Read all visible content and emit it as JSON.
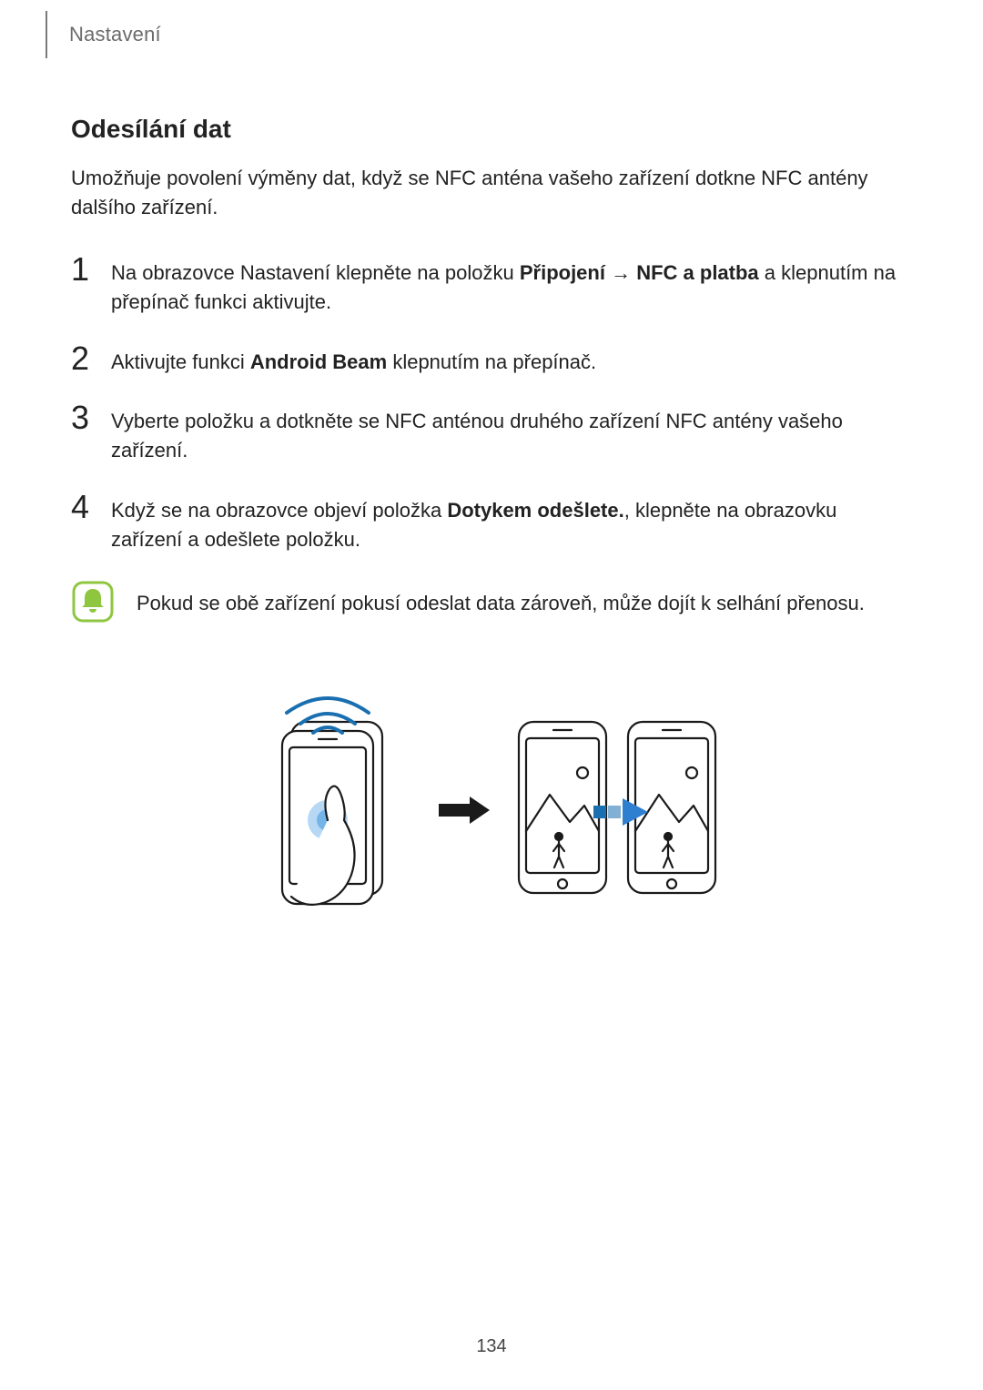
{
  "colors": {
    "page_bg": "#ffffff",
    "text": "#222222",
    "header_text": "#6b6b6b",
    "header_rule": "#7a7a7a",
    "note_icon_stroke": "#8fc640",
    "note_icon_fill": "#8fc640",
    "note_icon_inner": "#ffffff",
    "illus_stroke": "#1a1a1a",
    "illus_wave": "#1a6fb0",
    "illus_touch": "#5fa8e6",
    "illus_arrow_fill": "#1a1a1a",
    "illus_transfer_arrow": "#2f7fd1",
    "illus_bar_accent": "#1a6fb0"
  },
  "fonts": {
    "tab_size_pt": 16,
    "title_size_pt": 21,
    "body_size_pt": 16,
    "step_num_size_pt": 27,
    "page_num_size_pt": 15
  },
  "header": {
    "tab_label": "Nastavení"
  },
  "section": {
    "title": "Odesílání dat",
    "intro": "Umožňuje povolení výměny dat, když se NFC anténa vašeho zařízení dotkne NFC antény dalšího zařízení."
  },
  "steps": [
    {
      "num": "1",
      "parts": [
        {
          "t": "Na obrazovce Nastavení klepněte na položku "
        },
        {
          "t": "Připojení",
          "b": true
        },
        {
          "t": " → "
        },
        {
          "t": "NFC a platba",
          "b": true
        },
        {
          "t": " a klepnutím na přepínač funkci aktivujte."
        }
      ]
    },
    {
      "num": "2",
      "parts": [
        {
          "t": "Aktivujte funkci "
        },
        {
          "t": "Android Beam",
          "b": true
        },
        {
          "t": " klepnutím na přepínač."
        }
      ]
    },
    {
      "num": "3",
      "parts": [
        {
          "t": "Vyberte položku a dotkněte se NFC anténou druhého zařízení NFC antény vašeho zařízení."
        }
      ]
    },
    {
      "num": "4",
      "parts": [
        {
          "t": "Když se na obrazovce objeví položka "
        },
        {
          "t": "Dotykem odešlete.",
          "b": true
        },
        {
          "t": ", klepněte na obrazovku zařízení a odešlete položku."
        }
      ]
    }
  ],
  "note": {
    "text": "Pokud se obě zařízení pokusí odeslat data zároveň, může dojít k selhání přenosu."
  },
  "illustration": {
    "type": "infographic",
    "layout": "horizontal",
    "panel_count": 2,
    "arrow_between": true,
    "stroke_width": 2.2,
    "left_panel": "phone-touch-with-nfc-waves",
    "right_panel": "two-phones-transfer"
  },
  "page_number": "134"
}
